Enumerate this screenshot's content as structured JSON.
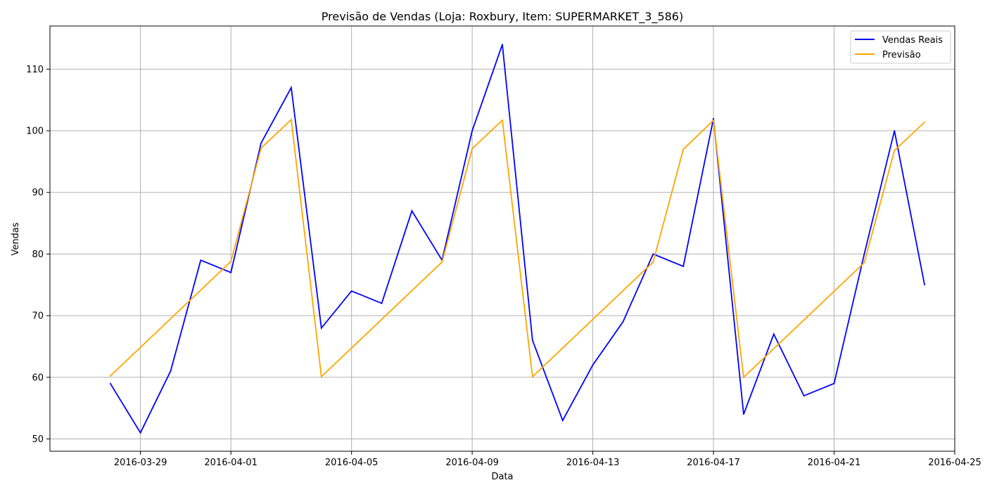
{
  "chart_data": {
    "type": "line",
    "title": "Previsão de Vendas (Loja: Roxbury, Item: SUPERMARKET_3_586)",
    "xlabel": "Data",
    "ylabel": "Vendas",
    "xlim": [
      "2016-03-26",
      "2016-04-25"
    ],
    "ylim": [
      48,
      117
    ],
    "x_ticks": [
      "2016-03-29",
      "2016-04-01",
      "2016-04-05",
      "2016-04-09",
      "2016-04-13",
      "2016-04-17",
      "2016-04-21",
      "2016-04-25"
    ],
    "y_ticks": [
      50,
      60,
      70,
      80,
      90,
      100,
      110
    ],
    "grid": true,
    "legend_position": "top-right",
    "series": [
      {
        "name": "Vendas Reais",
        "color": "#0000ff",
        "x": [
          "2016-03-28",
          "2016-03-29",
          "2016-03-30",
          "2016-03-31",
          "2016-04-01",
          "2016-04-02",
          "2016-04-03",
          "2016-04-04",
          "2016-04-05",
          "2016-04-06",
          "2016-04-07",
          "2016-04-08",
          "2016-04-09",
          "2016-04-10",
          "2016-04-11",
          "2016-04-12",
          "2016-04-13",
          "2016-04-14",
          "2016-04-15",
          "2016-04-16",
          "2016-04-17",
          "2016-04-18",
          "2016-04-19",
          "2016-04-20",
          "2016-04-21",
          "2016-04-22",
          "2016-04-23",
          "2016-04-24"
        ],
        "values": [
          59,
          51,
          61,
          79,
          77,
          98,
          107,
          68,
          74,
          72,
          87,
          79,
          100,
          114,
          66,
          53,
          62,
          69,
          80,
          78,
          102,
          54,
          67,
          57,
          59,
          80,
          100,
          75
        ]
      },
      {
        "name": "Previsão",
        "color": "#ffa500",
        "x": [
          "2016-03-28",
          "2016-04-01",
          "2016-04-02",
          "2016-04-03",
          "2016-04-04",
          "2016-04-08",
          "2016-04-09",
          "2016-04-10",
          "2016-04-11",
          "2016-04-15",
          "2016-04-16",
          "2016-04-17",
          "2016-04-18",
          "2016-04-22",
          "2016-04-23",
          "2016-04-24"
        ],
        "values": [
          60.2,
          78.8,
          97.2,
          101.8,
          60.1,
          78.7,
          97.1,
          101.7,
          60.1,
          78.7,
          97.0,
          101.7,
          60.0,
          78.6,
          96.8,
          101.4
        ]
      }
    ]
  }
}
